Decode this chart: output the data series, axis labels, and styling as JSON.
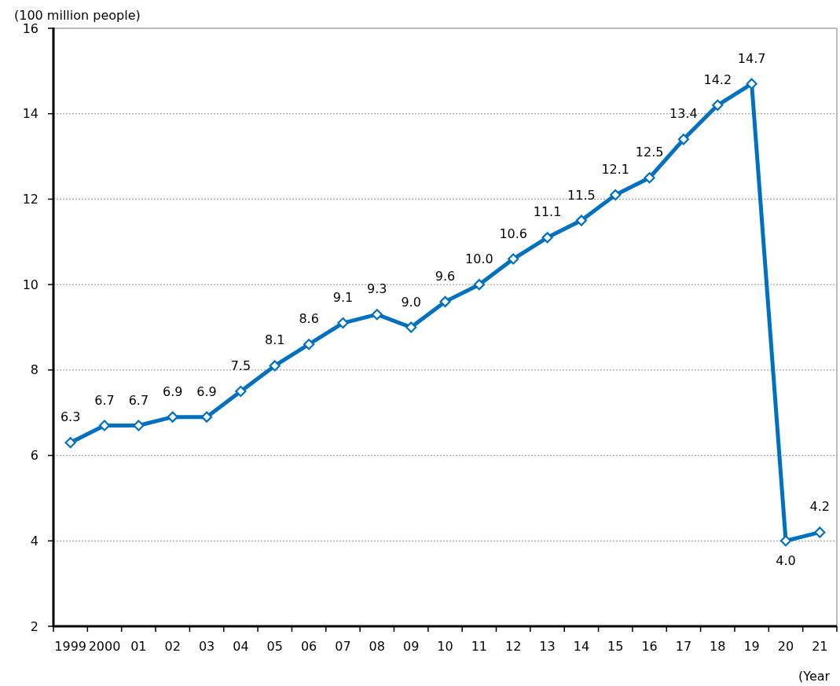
{
  "chart_data": {
    "type": "line",
    "ylabel": "(100 million people)",
    "xlabel": "(Year",
    "categories": [
      "1999",
      "2000",
      "01",
      "02",
      "03",
      "04",
      "05",
      "06",
      "07",
      "08",
      "09",
      "10",
      "11",
      "12",
      "13",
      "14",
      "15",
      "16",
      "17",
      "18",
      "19",
      "20",
      "21"
    ],
    "series": [
      {
        "color": "#0070c0",
        "values": [
          6.3,
          6.7,
          6.7,
          6.9,
          6.9,
          7.5,
          8.1,
          8.6,
          9.1,
          9.3,
          9.0,
          9.6,
          10.0,
          10.6,
          11.1,
          11.5,
          12.1,
          12.5,
          13.4,
          14.2,
          14.7,
          4.0,
          4.2
        ],
        "value_labels": [
          "6.3",
          "6.7",
          "6.7",
          "6.9",
          "6.9",
          "7.5",
          "8.1",
          "8.6",
          "9.1",
          "9.3",
          "9.0",
          "9.6",
          "10.0",
          "10.6",
          "11.1",
          "11.5",
          "12.1",
          "12.5",
          "13.4",
          "14.2",
          "14.7",
          "4.0",
          "4.2"
        ]
      }
    ],
    "ylim": [
      2,
      16
    ],
    "yticks": [
      2,
      4,
      6,
      8,
      10,
      12,
      14,
      16
    ],
    "grid": "y",
    "marker": "diamond",
    "line_style": "solid"
  }
}
